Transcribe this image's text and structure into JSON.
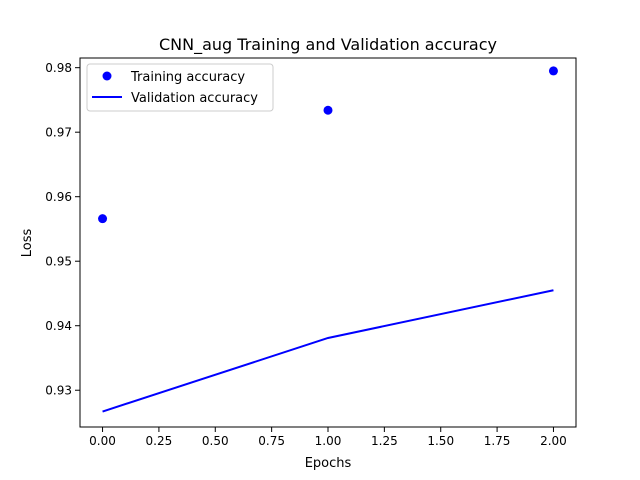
{
  "chart_data": {
    "type": "line",
    "title": "CNN_aug Training and Validation accuracy",
    "xlabel": "Epochs",
    "ylabel": "Loss",
    "xlim": [
      -0.1,
      2.1
    ],
    "ylim": [
      0.9243,
      0.9815
    ],
    "xticks": [
      0.0,
      0.25,
      0.5,
      0.75,
      1.0,
      1.25,
      1.5,
      1.75,
      2.0
    ],
    "xtick_labels": [
      "0.00",
      "0.25",
      "0.50",
      "0.75",
      "1.00",
      "1.25",
      "1.50",
      "1.75",
      "2.00"
    ],
    "yticks": [
      0.93,
      0.94,
      0.95,
      0.96,
      0.97,
      0.98
    ],
    "ytick_labels": [
      "0.93",
      "0.94",
      "0.95",
      "0.96",
      "0.97",
      "0.98"
    ],
    "grid": false,
    "legend_position": "top-left",
    "series": [
      {
        "name": "Training accuracy",
        "style": "markers",
        "color": "#0000ff",
        "x": [
          0,
          1,
          2
        ],
        "y": [
          0.9566,
          0.9734,
          0.9795
        ]
      },
      {
        "name": "Validation accuracy",
        "style": "line",
        "color": "#0000ff",
        "x": [
          0,
          1,
          2
        ],
        "y": [
          0.9267,
          0.9381,
          0.9455
        ]
      }
    ]
  }
}
